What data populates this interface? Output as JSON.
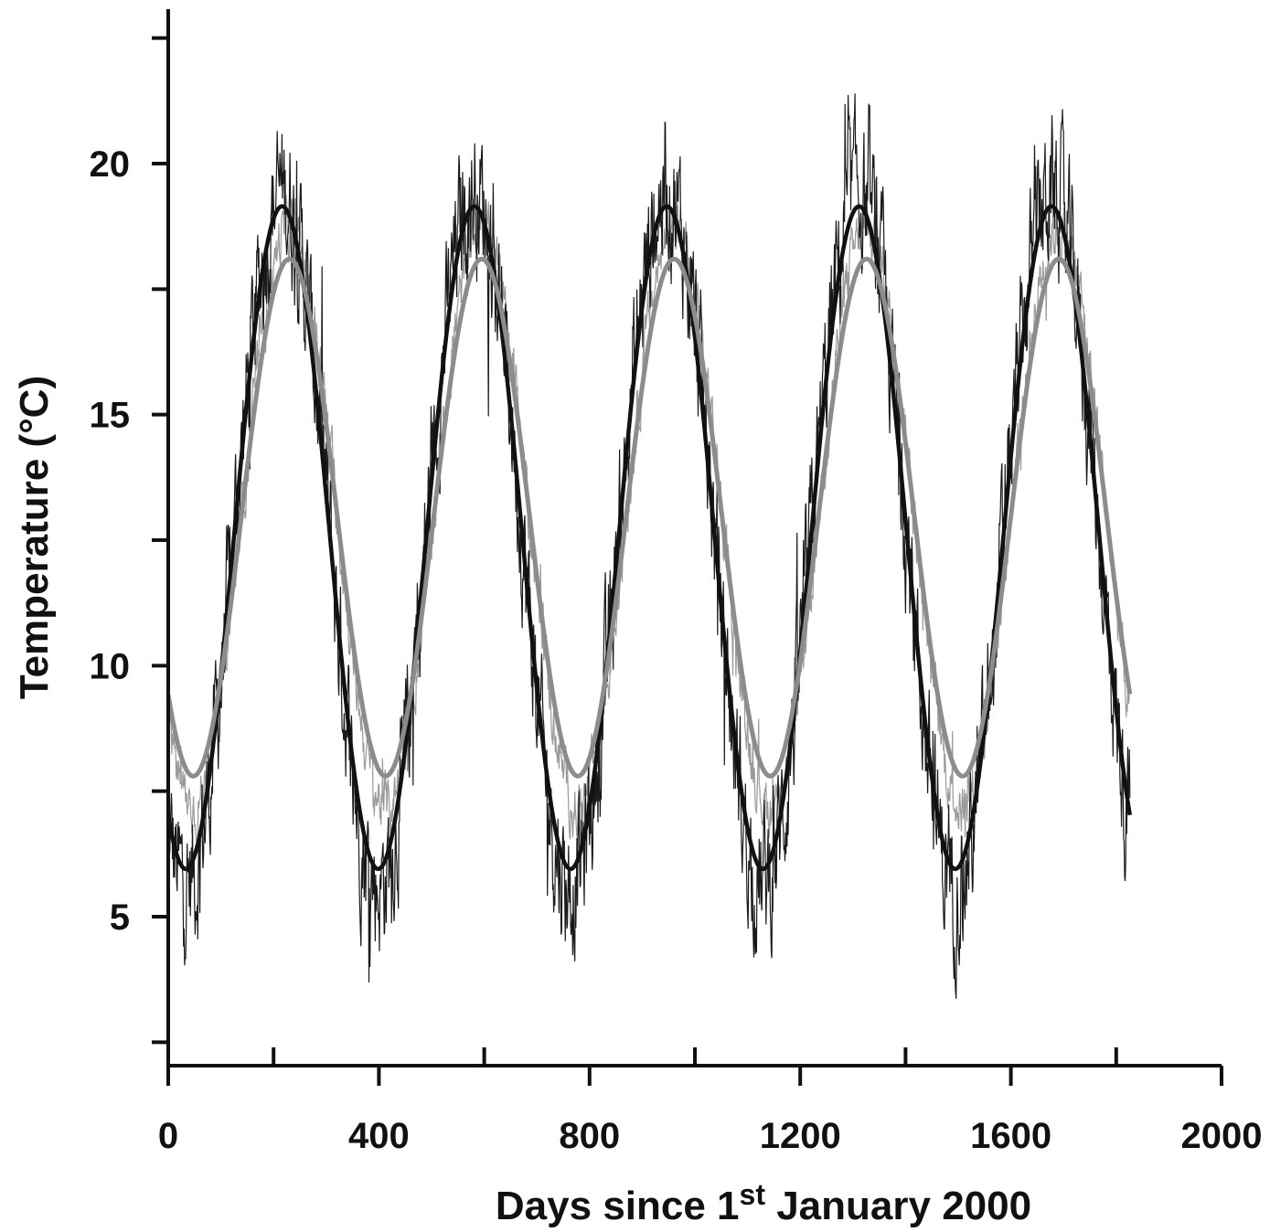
{
  "chart_data": {
    "type": "line",
    "title": "",
    "xlabel": {
      "pre": "Days since 1",
      "sup": "st",
      "post": " January 2000"
    },
    "ylabel": "Temperature (°C)",
    "xlim": [
      0,
      2000
    ],
    "ylim": [
      2.5,
      23.5
    ],
    "xticks": [
      0,
      400,
      800,
      1200,
      1600,
      2000
    ],
    "xticks_minor": [
      200,
      600,
      1000,
      1400,
      1800
    ],
    "yticks": [
      5,
      10,
      15,
      20
    ],
    "yticks_minor": [
      2.5,
      7.5,
      12.5,
      17.5,
      22.5
    ],
    "grid": false,
    "legend": "none",
    "period_days": 365.25,
    "x_range": [
      0,
      1826
    ],
    "series": [
      {
        "role": "fitted-sinusoid-black",
        "color": "#111111",
        "mean": 12.55,
        "amplitude": 6.6,
        "peak_day": 216,
        "points": [
          [
            0,
            6.9
          ],
          [
            34,
            6.0
          ],
          [
            216,
            19.15
          ],
          [
            399,
            6.0
          ],
          [
            581,
            19.15
          ],
          [
            764,
            6.0
          ],
          [
            947,
            19.15
          ],
          [
            1129,
            6.0
          ],
          [
            1312,
            19.15
          ],
          [
            1495,
            6.0
          ],
          [
            1677,
            19.15
          ],
          [
            1826,
            6.7
          ]
        ]
      },
      {
        "role": "fitted-sinusoid-grey",
        "color": "#8c8c8c",
        "mean": 12.95,
        "amplitude": 5.15,
        "peak_day": 230,
        "points": [
          [
            0,
            9.2
          ],
          [
            48,
            7.8
          ],
          [
            230,
            18.1
          ],
          [
            413,
            7.8
          ],
          [
            595,
            18.1
          ],
          [
            778,
            7.8
          ],
          [
            961,
            18.1
          ],
          [
            1143,
            7.8
          ],
          [
            1326,
            18.1
          ],
          [
            1509,
            7.8
          ],
          [
            1691,
            18.1
          ],
          [
            1826,
            9.2
          ]
        ]
      },
      {
        "role": "observed-daily-black",
        "color": "#1a1a1a",
        "notable_points": [
          [
            25,
            3.0
          ],
          [
            200,
            19.6
          ],
          [
            560,
            21.2
          ],
          [
            735,
            2.8
          ],
          [
            940,
            21.6
          ],
          [
            1140,
            3.8
          ],
          [
            1315,
            22.8
          ],
          [
            1490,
            3.6
          ],
          [
            1670,
            21.0
          ]
        ]
      },
      {
        "role": "observed-daily-grey",
        "color": "#9a9a9a"
      }
    ]
  }
}
